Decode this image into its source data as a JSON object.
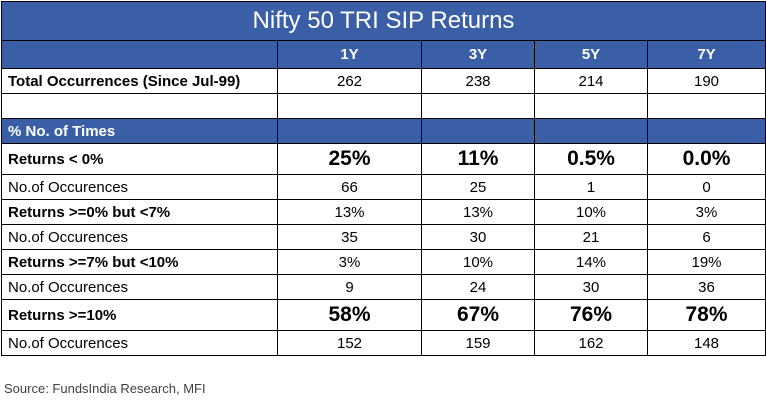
{
  "title": "Nifty 50 TRI SIP Returns",
  "columns": [
    "1Y",
    "3Y",
    "5Y",
    "7Y"
  ],
  "total": {
    "label": "Total Occurrences (Since Jul-99)",
    "values": [
      "262",
      "238",
      "214",
      "190"
    ]
  },
  "section_label": "% No. of Times",
  "rows": [
    {
      "label": "Returns < 0%",
      "pct": [
        "25%",
        "11%",
        "0.5%",
        "0.0%"
      ],
      "count_label": "No.of Occurences",
      "counts": [
        "66",
        "25",
        "1",
        "0"
      ]
    },
    {
      "label": "Returns >=0% but <7%",
      "pct": [
        "13%",
        "13%",
        "10%",
        "3%"
      ],
      "count_label": "No.of Occurences",
      "counts": [
        "35",
        "30",
        "21",
        "6"
      ]
    },
    {
      "label": "Returns >=7% but <10%",
      "pct": [
        "3%",
        "10%",
        "14%",
        "19%"
      ],
      "count_label": "No.of Occurences",
      "counts": [
        "9",
        "24",
        "30",
        "36"
      ]
    },
    {
      "label": "Returns >=10%",
      "pct": [
        "58%",
        "67%",
        "76%",
        "78%"
      ],
      "count_label": "No.of Occurences",
      "counts": [
        "152",
        "159",
        "162",
        "148"
      ]
    }
  ],
  "source": "Source: FundsIndia Research, MFI"
}
